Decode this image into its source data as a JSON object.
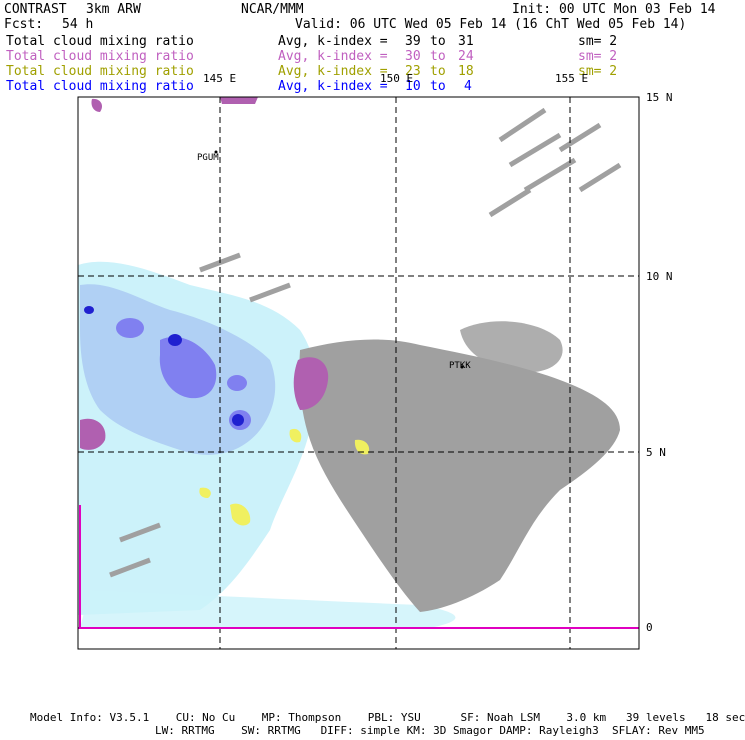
{
  "header": {
    "product": "CONTRAST",
    "model": "3km ARW",
    "center": "NCAR/MMM",
    "init": "Init: 00 UTC Mon 03 Feb 14",
    "fcst_label": "Fcst:",
    "fcst_value": "54 h",
    "valid": "Valid: 06 UTC Wed 05 Feb 14 (16 ChT Wed 05 Feb 14)"
  },
  "layers": [
    {
      "field": "Total cloud mixing ratio",
      "avg": "Avg, k-index =",
      "k_from": "39",
      "to": "to",
      "k_to": "31",
      "sm": "sm= 2",
      "color": "#000000"
    },
    {
      "field": "Total cloud mixing ratio",
      "avg": "Avg, k-index =",
      "k_from": "30",
      "to": "to",
      "k_to": "24",
      "sm": "sm= 2",
      "color": "#c060c0"
    },
    {
      "field": "Total cloud mixing ratio",
      "avg": "Avg, k-index =",
      "k_from": "23",
      "to": "to",
      "k_to": "18",
      "sm": "sm= 2",
      "color": "#a0a000"
    },
    {
      "field": "Total cloud mixing ratio",
      "avg": "Avg, k-index =",
      "k_from": "10",
      "to": "to",
      "k_to": "4",
      "sm": "",
      "color": "#0000ff"
    }
  ],
  "map": {
    "lon_labels": [
      "145 E",
      "150 E",
      "155 E"
    ],
    "lat_labels": [
      "15 N",
      "10 N",
      "5 N",
      "0"
    ],
    "stations": [
      "PGUM",
      "PTKK"
    ]
  },
  "footer": {
    "line1": "Model Info: V3.5.1    CU: No Cu    MP: Thompson    PBL: YSU      SF: Noah LSM    3.0 km   39 levels   18 sec",
    "line2": "LW: RRTMG    SW: RRTMG   DIFF: simple KM: 3D Smagor DAMP: Rayleigh3  SFLAY: Rev MM5"
  },
  "colors": {
    "land": "#a0a0a0",
    "low_cloud": "#ccf2fa",
    "mid_cloud": "#b0d0f4",
    "blue_cloud": "#8080f0",
    "deep_blue": "#2020d0",
    "purple": "#b060b0",
    "yellow": "#f0f060",
    "magenta": "#e000c0"
  }
}
